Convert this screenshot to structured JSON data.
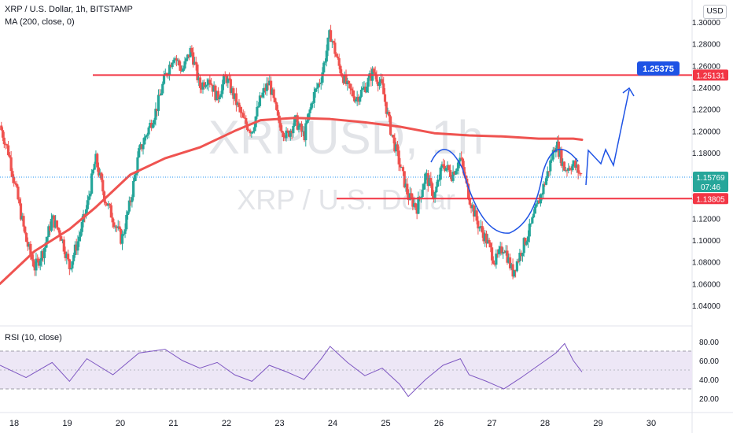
{
  "header": {
    "symbol_line": "XRP / U.S. Dollar, 1h, BITSTAMP",
    "ma_line": "MA (200, close, 0)",
    "currency": "USD"
  },
  "watermark": {
    "symbol": "XRPUSD, 1h",
    "name": "XRP / U.S. Dollar"
  },
  "rsi": {
    "label": "RSI (10, close)",
    "ticks": [
      "80.00",
      "60.00",
      "40.00",
      "20.00"
    ],
    "levels": [
      70,
      30
    ],
    "middle": 50
  },
  "price_axis": {
    "ticks": [
      "1.30000",
      "1.28000",
      "1.26000",
      "1.24000",
      "1.22000",
      "1.20000",
      "1.18000",
      "1.14000",
      "1.12000",
      "1.10000",
      "1.08000",
      "1.06000",
      "1.04000"
    ]
  },
  "time_axis": {
    "ticks": [
      "18",
      "19",
      "20",
      "21",
      "22",
      "23",
      "24",
      "25",
      "26",
      "27",
      "28",
      "29",
      "30"
    ]
  },
  "price_labels": {
    "resistance": "1.25131",
    "current": "1.15769",
    "countdown": "07:46",
    "support": "1.13805",
    "target": "1.25375"
  },
  "colors": {
    "up": "#26a69a",
    "down": "#ef5350",
    "ma": "#ef5350",
    "level": "#f23645",
    "projection": "#1e53e5",
    "current": "#2196f3",
    "rsi_line": "#7e57c2",
    "rsi_band": "#ede7f6"
  },
  "chart_data": {
    "type": "candlestick",
    "symbol": "XRPUSD",
    "interval": "1h",
    "price_range": [
      1.03,
      1.31
    ],
    "anchors": [
      [
        0,
        1.205
      ],
      [
        1,
        1.18
      ],
      [
        2,
        1.14
      ],
      [
        3,
        1.1
      ],
      [
        4,
        1.075
      ],
      [
        5,
        1.09
      ],
      [
        6,
        1.12
      ],
      [
        7,
        1.105
      ],
      [
        8,
        1.075
      ],
      [
        9,
        1.1
      ],
      [
        10,
        1.13
      ],
      [
        11,
        1.175
      ],
      [
        12,
        1.14
      ],
      [
        13,
        1.12
      ],
      [
        14,
        1.1
      ],
      [
        15,
        1.135
      ],
      [
        16,
        1.18
      ],
      [
        17,
        1.2
      ],
      [
        18,
        1.22
      ],
      [
        19,
        1.25
      ],
      [
        20,
        1.27
      ],
      [
        21,
        1.255
      ],
      [
        22,
        1.275
      ],
      [
        23,
        1.24
      ],
      [
        24,
        1.25
      ],
      [
        25,
        1.23
      ],
      [
        26,
        1.25
      ],
      [
        27,
        1.23
      ],
      [
        28,
        1.21
      ],
      [
        29,
        1.2
      ],
      [
        30,
        1.23
      ],
      [
        31,
        1.245
      ],
      [
        32,
        1.21
      ],
      [
        33,
        1.195
      ],
      [
        34,
        1.21
      ],
      [
        35,
        1.195
      ],
      [
        36,
        1.23
      ],
      [
        37,
        1.25
      ],
      [
        38,
        1.29
      ],
      [
        39,
        1.26
      ],
      [
        40,
        1.24
      ],
      [
        41,
        1.23
      ],
      [
        42,
        1.24
      ],
      [
        43,
        1.255
      ],
      [
        44,
        1.24
      ],
      [
        45,
        1.2
      ],
      [
        46,
        1.17
      ],
      [
        47,
        1.14
      ],
      [
        48,
        1.13
      ],
      [
        49,
        1.16
      ],
      [
        50,
        1.14
      ],
      [
        51,
        1.17
      ],
      [
        52,
        1.16
      ],
      [
        53,
        1.175
      ],
      [
        54,
        1.14
      ],
      [
        55,
        1.115
      ],
      [
        56,
        1.1
      ],
      [
        57,
        1.08
      ],
      [
        58,
        1.095
      ],
      [
        59,
        1.07
      ],
      [
        60,
        1.09
      ],
      [
        61,
        1.11
      ],
      [
        62,
        1.135
      ],
      [
        63,
        1.16
      ],
      [
        64,
        1.19
      ],
      [
        65,
        1.165
      ],
      [
        66,
        1.17
      ],
      [
        67,
        1.158
      ]
    ],
    "moving_average": {
      "name": "MA 200",
      "values": [
        [
          0,
          1.06
        ],
        [
          4,
          1.09
        ],
        [
          8,
          1.11
        ],
        [
          11,
          1.13
        ],
        [
          15,
          1.16
        ],
        [
          19,
          1.175
        ],
        [
          23,
          1.185
        ],
        [
          27,
          1.2
        ],
        [
          30,
          1.21
        ],
        [
          34,
          1.212
        ],
        [
          38,
          1.211
        ],
        [
          42,
          1.208
        ],
        [
          46,
          1.204
        ],
        [
          50,
          1.198
        ],
        [
          54,
          1.196
        ],
        [
          58,
          1.195
        ],
        [
          62,
          1.193
        ],
        [
          66,
          1.193
        ],
        [
          67,
          1.192
        ]
      ]
    },
    "levels": {
      "resistance": 1.25131,
      "support": 1.13805,
      "current": 1.15769,
      "target": 1.25375
    },
    "rsi_values": [
      [
        0,
        55
      ],
      [
        3,
        42
      ],
      [
        6,
        58
      ],
      [
        8,
        38
      ],
      [
        10,
        62
      ],
      [
        13,
        45
      ],
      [
        16,
        68
      ],
      [
        19,
        72
      ],
      [
        21,
        60
      ],
      [
        23,
        52
      ],
      [
        25,
        58
      ],
      [
        27,
        45
      ],
      [
        29,
        38
      ],
      [
        31,
        55
      ],
      [
        33,
        48
      ],
      [
        35,
        40
      ],
      [
        37,
        62
      ],
      [
        38,
        75
      ],
      [
        40,
        58
      ],
      [
        42,
        44
      ],
      [
        44,
        52
      ],
      [
        46,
        35
      ],
      [
        47,
        22
      ],
      [
        49,
        40
      ],
      [
        51,
        55
      ],
      [
        53,
        62
      ],
      [
        54,
        45
      ],
      [
        56,
        38
      ],
      [
        58,
        30
      ],
      [
        60,
        42
      ],
      [
        62,
        55
      ],
      [
        64,
        68
      ],
      [
        65,
        78
      ],
      [
        66,
        60
      ],
      [
        67,
        48
      ]
    ]
  }
}
